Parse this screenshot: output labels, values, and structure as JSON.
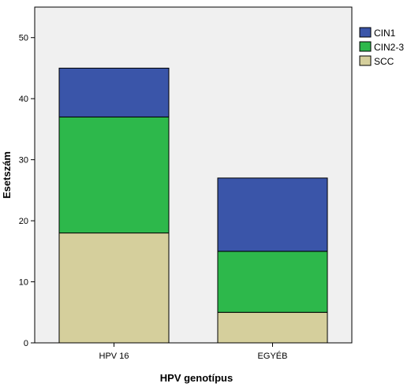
{
  "chart_data": {
    "type": "bar",
    "stacked": true,
    "categories": [
      "HPV 16",
      "EGYÉB"
    ],
    "series": [
      {
        "name": "SCC",
        "values": [
          18,
          5
        ],
        "color": "#d5cf9c"
      },
      {
        "name": "CIN2-3",
        "values": [
          19,
          10
        ],
        "color": "#2db84b"
      },
      {
        "name": "CIN1",
        "values": [
          8,
          12
        ],
        "color": "#3a55a9"
      }
    ],
    "legend_order": [
      "CIN1",
      "CIN2-3",
      "SCC"
    ],
    "xlabel": "HPV genotípus",
    "ylabel": "Esetszám",
    "ylim": [
      0,
      55
    ],
    "yticks": [
      0,
      10,
      20,
      30,
      40,
      50
    ],
    "grid": false,
    "legend_position": "top-right",
    "plot_background": "#f0f0f0"
  }
}
